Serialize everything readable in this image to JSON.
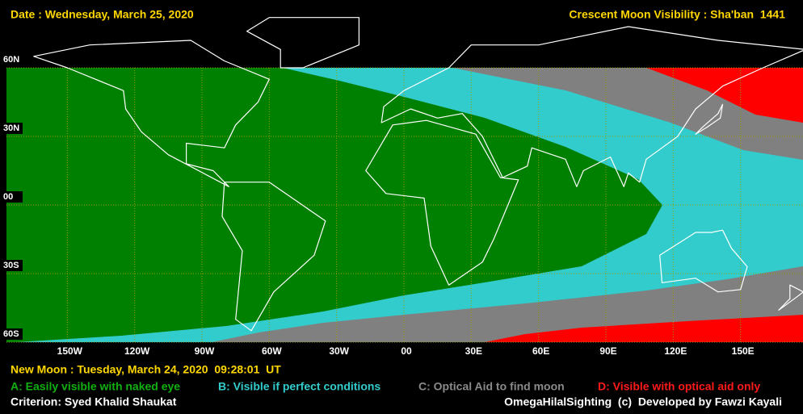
{
  "header": {
    "date": "Date : Wednesday, March 25, 2020",
    "title": "Crescent Moon Visibility : Sha'ban  1441"
  },
  "map": {
    "lat_labels": [
      "60N",
      "30N",
      "00",
      "30S",
      "60S"
    ],
    "lon_labels": [
      "150W",
      "120W",
      "90W",
      "60W",
      "30W",
      "00",
      "30E",
      "60E",
      "90E",
      "120E",
      "150E"
    ]
  },
  "footer": {
    "new_moon": "New Moon : Tuesday, March 24, 2020  09:28:01  UT",
    "legend": [
      {
        "label": "A: Easily visible with naked eye",
        "color": "#008000",
        "text_color": "#10b010"
      },
      {
        "label": "B: Visible if perfect conditions",
        "color": "#33cccc",
        "text_color": "#33cccc"
      },
      {
        "label": "C: Optical Aid to find moon",
        "color": "#808080",
        "text_color": "#8a8a8a"
      },
      {
        "label": "D: Visible with optical aid only",
        "color": "#ff0000",
        "text_color": "#ff1a1a"
      }
    ],
    "criterion": "Criterion: Syed Khalid Shaukat",
    "credit": "OmegaHilalSighting  (c)  Developed by Fawzi Kayali"
  }
}
